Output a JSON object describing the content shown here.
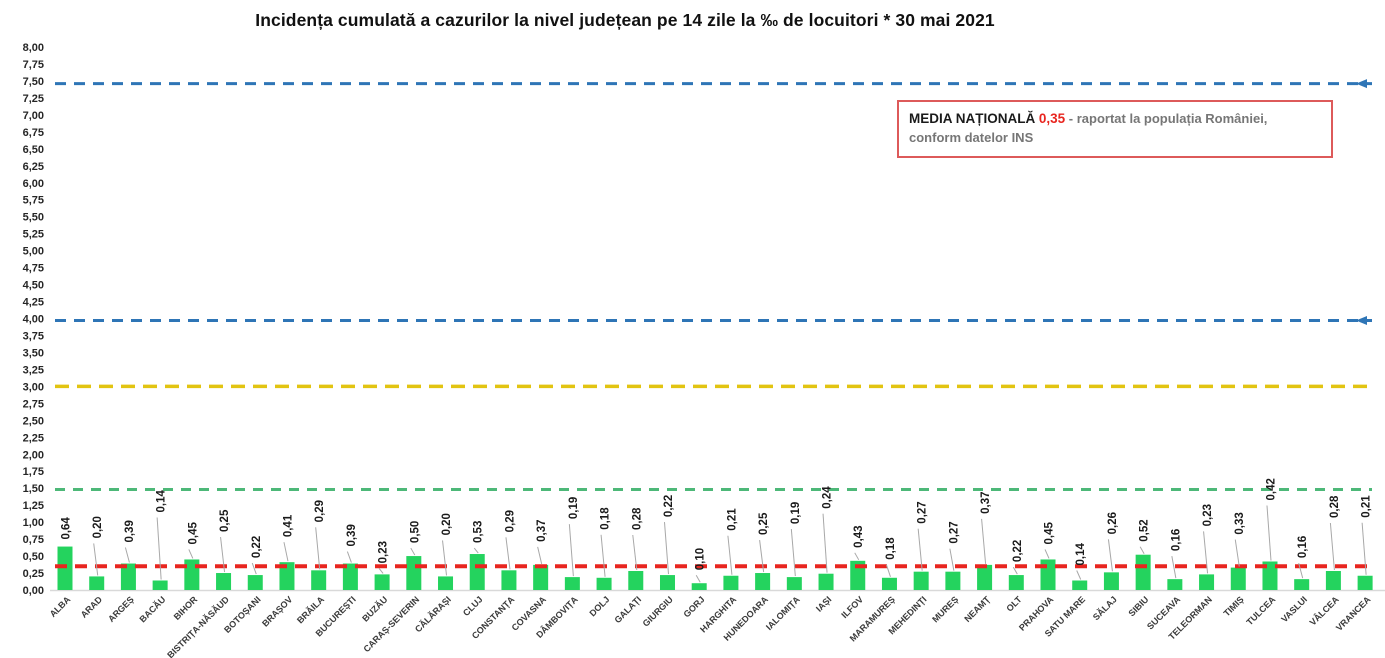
{
  "title": "Incidența cumulată a cazurilor la nivel județean pe 14 zile la ‰ de locuitori *  30 mai 2021",
  "legend": {
    "label": "MEDIA NAȚIONALĂ",
    "value": "0,35",
    "text_line1": "- raportat la populația României,",
    "text_line2": "conform datelor INS"
  },
  "chart_data": {
    "type": "bar",
    "title": "Incidența cumulată a cazurilor la nivel județean pe 14 zile la ‰ de locuitori *  30 mai 2021",
    "date": "30 mai 2021",
    "national_average": 0.35,
    "categories": [
      "ALBA",
      "ARAD",
      "ARGEȘ",
      "BACĂU",
      "BIHOR",
      "BISTRIȚA-NĂSĂUD",
      "BOTOȘANI",
      "BRAȘOV",
      "BRĂILA",
      "BUCUREȘTI",
      "BUZĂU",
      "CARAȘ-SEVERIN",
      "CĂLĂRAȘI",
      "CLUJ",
      "CONSTANȚA",
      "COVASNA",
      "DÂMBOVIȚA",
      "DOLJ",
      "GALAȚI",
      "GIURGIU",
      "GORJ",
      "HARGHITA",
      "HUNEDOARA",
      "IALOMIȚA",
      "IAȘI",
      "ILFOV",
      "MARAMUREȘ",
      "MEHEDINȚI",
      "MUREȘ",
      "NEAMȚ",
      "OLT",
      "PRAHOVA",
      "SATU MARE",
      "SĂLAJ",
      "SIBIU",
      "SUCEAVA",
      "TELEORMAN",
      "TIMIȘ",
      "TULCEA",
      "VASLUI",
      "VÂLCEA",
      "VRANCEA"
    ],
    "values": [
      0.64,
      0.2,
      0.39,
      0.14,
      0.45,
      0.25,
      0.22,
      0.41,
      0.29,
      0.39,
      0.23,
      0.5,
      0.2,
      0.53,
      0.29,
      0.37,
      0.19,
      0.18,
      0.28,
      0.22,
      0.1,
      0.21,
      0.25,
      0.19,
      0.24,
      0.43,
      0.18,
      0.27,
      0.27,
      0.37,
      0.22,
      0.45,
      0.14,
      0.26,
      0.52,
      0.16,
      0.23,
      0.33,
      0.42,
      0.16,
      0.28,
      0.21
    ],
    "value_labels": [
      "0,64",
      "0,20",
      "0,39",
      "0,14",
      "0,45",
      "0,25",
      "0,22",
      "0,41",
      "0,29",
      "0,39",
      "0,23",
      "0,50",
      "0,20",
      "0,53",
      "0,29",
      "0,37",
      "0,19",
      "0,18",
      "0,28",
      "0,22",
      "0,10",
      "0,21",
      "0,25",
      "0,19",
      "0,24",
      "0,43",
      "0,18",
      "0,27",
      "0,27",
      "0,37",
      "0,22",
      "0,45",
      "0,14",
      "0,26",
      "0,52",
      "0,16",
      "0,23",
      "0,33",
      "0,42",
      "0,16",
      "0,28",
      "0,21"
    ],
    "xlabel": "",
    "ylabel": "",
    "ylim": [
      0,
      8
    ],
    "ytick_step": 0.25,
    "grid": false,
    "legend_position": "top-right",
    "bar_color": "#24d35e",
    "reference_lines": [
      {
        "value": 7.46,
        "color": "#2e75b6",
        "style": "dashed",
        "width": 3,
        "dash": "11 8",
        "arrow": true
      },
      {
        "value": 3.97,
        "color": "#2e75b6",
        "style": "dashed",
        "width": 3,
        "dash": "11 8",
        "arrow": true
      },
      {
        "value": 3.0,
        "color": "#e2c411",
        "style": "dashed",
        "width": 3.5,
        "dash": "14 8",
        "arrow": false
      },
      {
        "value": 1.48,
        "color": "#4db878",
        "style": "dashed",
        "width": 3,
        "dash": "10 8",
        "arrow": false
      },
      {
        "value": 0.35,
        "color": "#e8251f",
        "style": "dashed",
        "width": 4,
        "dash": "12 8",
        "arrow": false
      }
    ]
  }
}
